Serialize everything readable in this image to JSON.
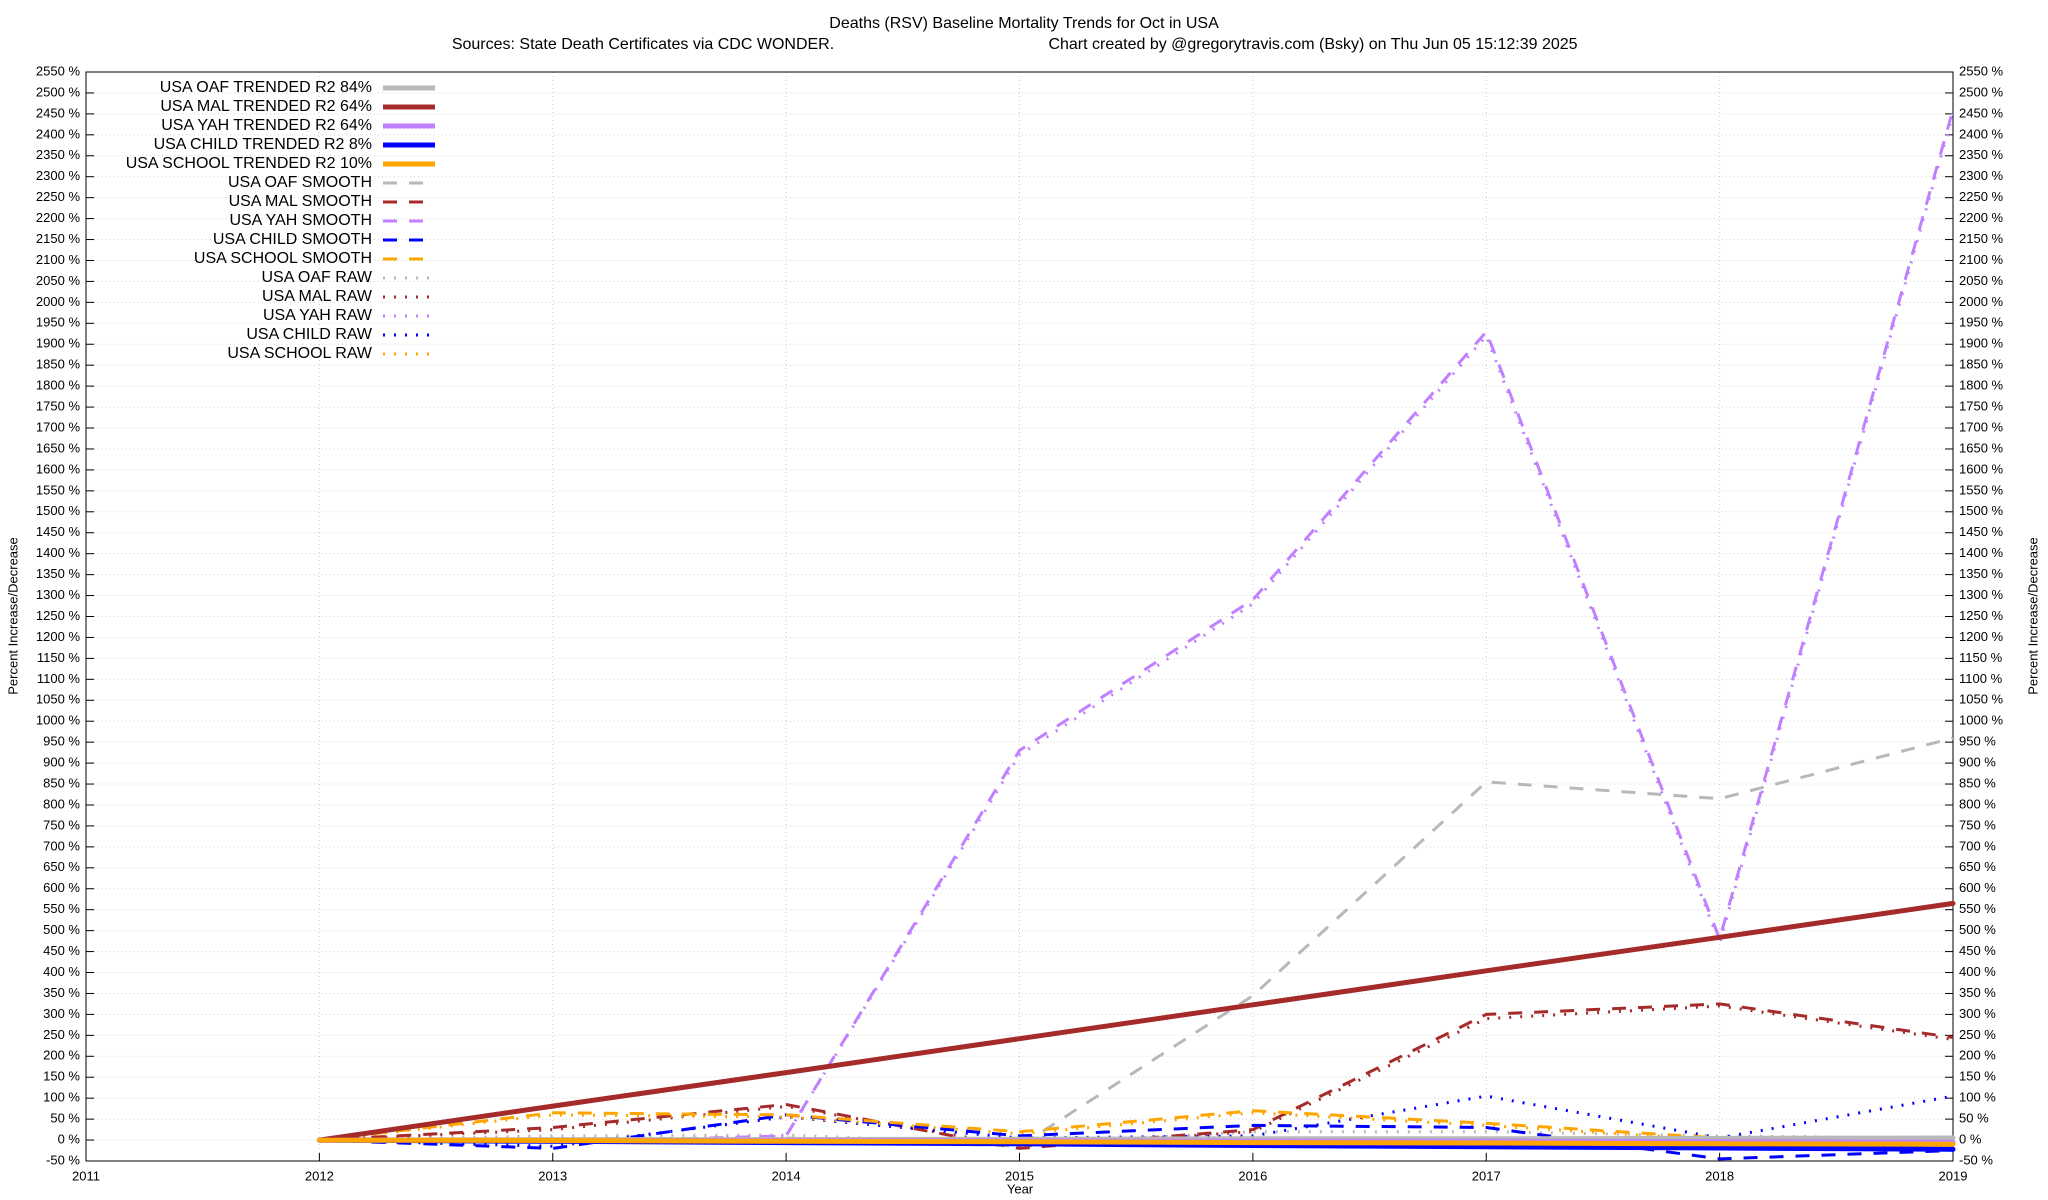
{
  "chart_data": {
    "type": "line",
    "title": "Deaths (RSV)  Baseline Mortality Trends for Oct in USA",
    "subtitle": "Sources: State Death Certificates via CDC WONDER.",
    "credit": "Chart created by @gregorytravis.com (Bsky) on Thu Jun 05 15:12:39 2025",
    "x_label": "Year",
    "y_label": "Percent Increase/Decrease",
    "y2_label": "Percent Increase/Decrease",
    "xlim": [
      2011,
      2019
    ],
    "xticks": [
      2011,
      2012,
      2013,
      2014,
      2015,
      2016,
      2017,
      2018,
      2019
    ],
    "ylim": [
      -50,
      2550
    ],
    "yticks": [
      {
        "value": -50,
        "label": "-50 %"
      },
      {
        "value": 0,
        "label": "0 %"
      },
      {
        "value": 50,
        "label": "50 %"
      },
      {
        "value": 100,
        "label": "100 %"
      },
      {
        "value": 150,
        "label": "150 %"
      },
      {
        "value": 200,
        "label": "200 %"
      },
      {
        "value": 250,
        "label": "250 %"
      },
      {
        "value": 300,
        "label": "300 %"
      },
      {
        "value": 350,
        "label": "350 %"
      },
      {
        "value": 400,
        "label": "400 %"
      },
      {
        "value": 450,
        "label": "450 %"
      },
      {
        "value": 500,
        "label": "500 %"
      },
      {
        "value": 550,
        "label": "550 %"
      },
      {
        "value": 600,
        "label": "600 %"
      },
      {
        "value": 650,
        "label": "650 %"
      },
      {
        "value": 700,
        "label": "700 %"
      },
      {
        "value": 750,
        "label": "750 %"
      },
      {
        "value": 800,
        "label": "800 %"
      },
      {
        "value": 850,
        "label": "850 %"
      },
      {
        "value": 900,
        "label": "900 %"
      },
      {
        "value": 950,
        "label": "950 %"
      },
      {
        "value": 1000,
        "label": "1000 %"
      },
      {
        "value": 1050,
        "label": "1050 %"
      },
      {
        "value": 1100,
        "label": "1100 %"
      },
      {
        "value": 1150,
        "label": "1150 %"
      },
      {
        "value": 1200,
        "label": "1200 %"
      },
      {
        "value": 1250,
        "label": "1250 %"
      },
      {
        "value": 1300,
        "label": "1300 %"
      },
      {
        "value": 1350,
        "label": "1350 %"
      },
      {
        "value": 1400,
        "label": "1400 %"
      },
      {
        "value": 1450,
        "label": "1450 %"
      },
      {
        "value": 1500,
        "label": "1500 %"
      },
      {
        "value": 1550,
        "label": "1550 %"
      },
      {
        "value": 1600,
        "label": "1600 %"
      },
      {
        "value": 1650,
        "label": "1650 %"
      },
      {
        "value": 1700,
        "label": "1700 %"
      },
      {
        "value": 1750,
        "label": "1750 %"
      },
      {
        "value": 1800,
        "label": "1800 %"
      },
      {
        "value": 1850,
        "label": "1850 %"
      },
      {
        "value": 1900,
        "label": "1900 %"
      },
      {
        "value": 1950,
        "label": "1950 %"
      },
      {
        "value": 2000,
        "label": "2000 %"
      },
      {
        "value": 2050,
        "label": "2050 %"
      },
      {
        "value": 2100,
        "label": "2100 %"
      },
      {
        "value": 2150,
        "label": "2150 %"
      },
      {
        "value": 2200,
        "label": "2200 %"
      },
      {
        "value": 2250,
        "label": "2250 %"
      },
      {
        "value": 2300,
        "label": "2300 %"
      },
      {
        "value": 2350,
        "label": "2350 %"
      },
      {
        "value": 2400,
        "label": "2400 %"
      },
      {
        "value": 2450,
        "label": "2450 %"
      },
      {
        "value": 2500,
        "label": "2500 %"
      },
      {
        "value": 2550,
        "label": "2550 %"
      }
    ],
    "grid": true,
    "legend": "top-left",
    "x": [
      2012,
      2013,
      2014,
      2015,
      2016,
      2017,
      2018,
      2019
    ],
    "series": [
      {
        "name": "USA OAF TRENDED R2  84%",
        "color": "#b8b8b8",
        "dash": "solid",
        "values": [
          0,
          1,
          1,
          2,
          3,
          3,
          4,
          5
        ]
      },
      {
        "name": "USA MAL TRENDED R2  64%",
        "color": "#a52a2a",
        "dash": "solid",
        "values": [
          0,
          81,
          161,
          242,
          323,
          404,
          484,
          565
        ]
      },
      {
        "name": "USA YAH TRENDED R2  64%",
        "color": "#c080ff",
        "dash": "solid",
        "values": [
          0,
          -1,
          -1,
          -2,
          -3,
          -3,
          -4,
          -5
        ]
      },
      {
        "name": "USA CHILD TRENDED R2  8%",
        "color": "#0000ff",
        "dash": "solid",
        "values": [
          0,
          -3,
          -6,
          -9,
          -13,
          -16,
          -19,
          -22
        ]
      },
      {
        "name": "USA SCHOOL TRENDED R2  10%",
        "color": "#ffa500",
        "dash": "solid",
        "values": [
          0,
          -1,
          -3,
          -4,
          -6,
          -7,
          -9,
          -10
        ]
      },
      {
        "name": "USA OAF SMOOTH",
        "color": "#b8b8b8",
        "dash": "dashed",
        "values": [
          0,
          2,
          5,
          -15,
          345,
          855,
          815,
          960
        ]
      },
      {
        "name": "USA MAL SMOOTH",
        "color": "#a52a2a",
        "dash": "dashed",
        "values": [
          0,
          30,
          85,
          -20,
          25,
          300,
          325,
          245
        ]
      },
      {
        "name": "USA YAH SMOOTH",
        "color": "#c080ff",
        "dash": "dashed",
        "values": [
          0,
          -5,
          10,
          930,
          1290,
          1930,
          480,
          2460
        ]
      },
      {
        "name": "USA CHILD SMOOTH",
        "color": "#0000ff",
        "dash": "dashed",
        "values": [
          0,
          -20,
          60,
          10,
          35,
          30,
          -45,
          -25
        ]
      },
      {
        "name": "USA SCHOOL SMOOTH",
        "color": "#ffa500",
        "dash": "dashed",
        "values": [
          0,
          65,
          60,
          20,
          70,
          40,
          5,
          0
        ]
      },
      {
        "name": "USA OAF RAW",
        "color": "#b8b8b8",
        "dash": "dotted",
        "values": [
          0,
          10,
          12,
          -10,
          20,
          20,
          10,
          5
        ]
      },
      {
        "name": "USA MAL RAW",
        "color": "#a52a2a",
        "dash": "dotted",
        "values": [
          0,
          25,
          80,
          -15,
          20,
          290,
          320,
          240
        ]
      },
      {
        "name": "USA YAH RAW",
        "color": "#c080ff",
        "dash": "dotted",
        "values": [
          0,
          -5,
          10,
          920,
          1280,
          1920,
          470,
          2450
        ]
      },
      {
        "name": "USA CHILD RAW",
        "color": "#0000ff",
        "dash": "dotted",
        "values": [
          0,
          -15,
          55,
          5,
          10,
          105,
          5,
          105
        ]
      },
      {
        "name": "USA SCHOOL RAW",
        "color": "#ffa500",
        "dash": "dotted",
        "values": [
          0,
          60,
          55,
          15,
          65,
          35,
          0,
          -5
        ]
      }
    ]
  }
}
